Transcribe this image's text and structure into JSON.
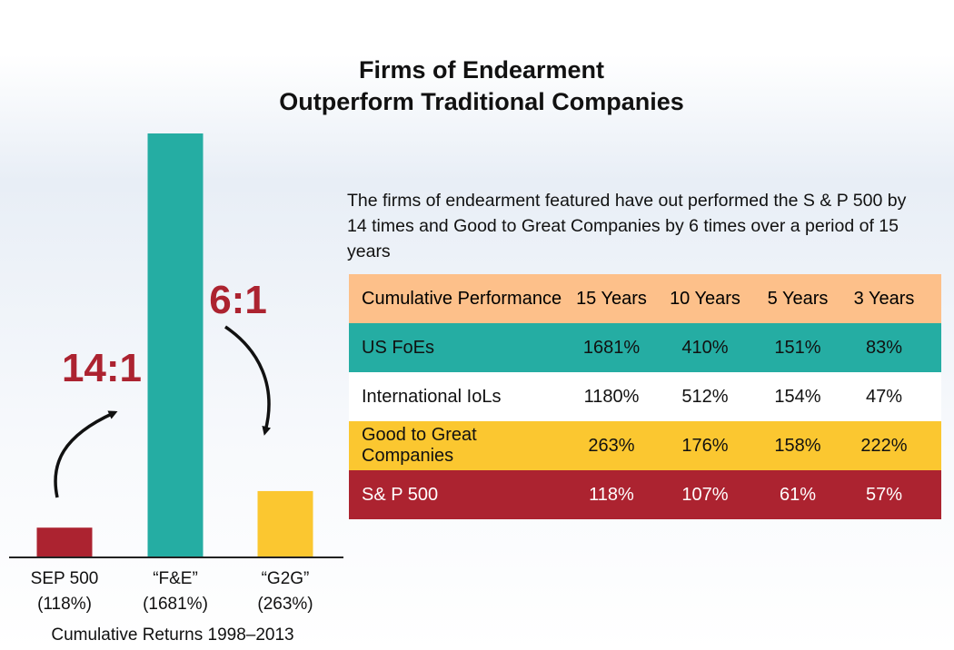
{
  "title": {
    "line1": "Firms of Endearment",
    "line2": "Outperform Traditional Companies"
  },
  "description": "The firms of endearment featured have out performed the S & P 500 by 14 times and Good to Great Companies by 6 times over a period of 15 years",
  "ratios": {
    "left": "14:1",
    "right": "6:1"
  },
  "colors": {
    "maroon": "#ac2330",
    "teal": "#25ada3",
    "gold": "#fbc730",
    "peach": "#fdc08a",
    "white": "#ffffff"
  },
  "chart_data": {
    "type": "bar",
    "categories": [
      "SEP 500",
      "“F&E”",
      "“G2G”"
    ],
    "category_values": [
      "(118%)",
      "(1681%)",
      "(263%)"
    ],
    "values": [
      118,
      1681,
      263
    ],
    "xlabel": "Cumulative Returns 1998–2013",
    "ylim": [
      0,
      1681
    ],
    "bar_colors": [
      "#ac2330",
      "#25ada3",
      "#fbc730"
    ],
    "grid": false,
    "legend": "none"
  },
  "table": {
    "header": [
      "Cumulative Performance",
      "15 Years",
      "10 Years",
      "5 Years",
      "3 Years"
    ],
    "rows": [
      {
        "cells": [
          "US FoEs",
          "1681%",
          "410%",
          "151%",
          "83%"
        ],
        "bg": "#25ada3",
        "fg": "#111111"
      },
      {
        "cells": [
          "International IoLs",
          "1180%",
          "512%",
          "154%",
          "47%"
        ],
        "bg": "#ffffff",
        "fg": "#111111"
      },
      {
        "cells": [
          "Good to Great Companies",
          "263%",
          "176%",
          "158%",
          "222%"
        ],
        "bg": "#fbc730",
        "fg": "#111111"
      },
      {
        "cells": [
          "S& P 500",
          "118%",
          "107%",
          "61%",
          "57%"
        ],
        "bg": "#ac2330",
        "fg": "#ffffff"
      }
    ],
    "header_bg": "#fdc08a"
  }
}
